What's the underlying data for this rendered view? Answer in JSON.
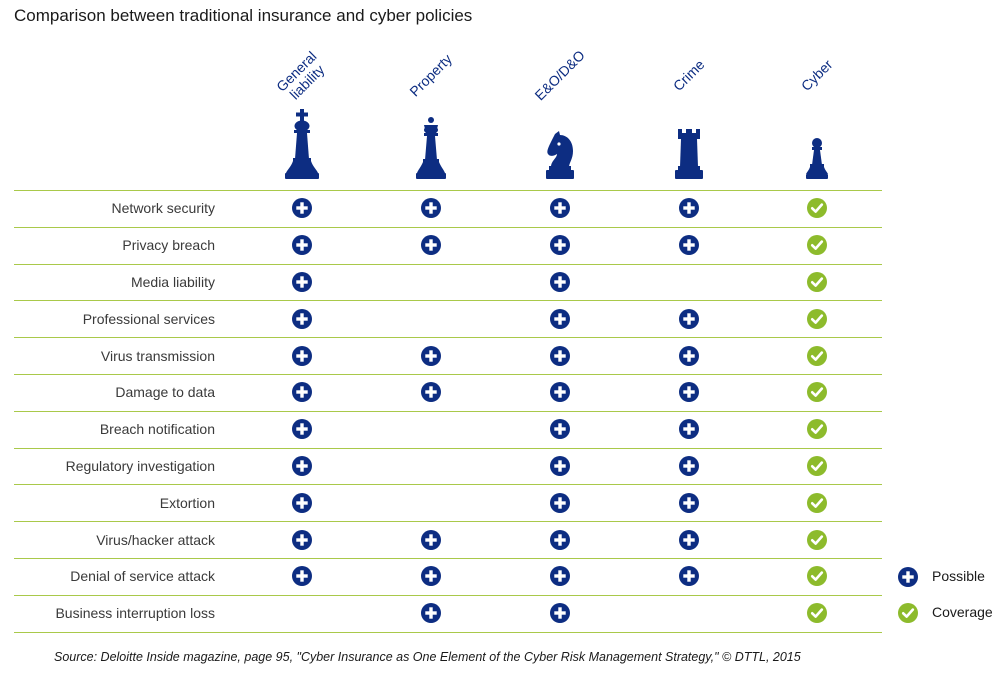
{
  "title": "Comparison between traditional insurance and cyber policies",
  "chart_data": {
    "type": "table",
    "columns": [
      {
        "label": "General liability",
        "piece": "king-icon"
      },
      {
        "label": "Property",
        "piece": "queen-icon"
      },
      {
        "label": "E&O/D&O",
        "piece": "knight-icon"
      },
      {
        "label": "Crime",
        "piece": "rook-icon"
      },
      {
        "label": "Cyber",
        "piece": "pawn-icon"
      }
    ],
    "rows": [
      {
        "label": "Network security",
        "cells": [
          "possible",
          "possible",
          "possible",
          "possible",
          "coverage"
        ]
      },
      {
        "label": "Privacy breach",
        "cells": [
          "possible",
          "possible",
          "possible",
          "possible",
          "coverage"
        ]
      },
      {
        "label": "Media liability",
        "cells": [
          "possible",
          "",
          "possible",
          "",
          "coverage"
        ]
      },
      {
        "label": "Professional services",
        "cells": [
          "possible",
          "",
          "possible",
          "possible",
          "coverage"
        ]
      },
      {
        "label": "Virus transmission",
        "cells": [
          "possible",
          "possible",
          "possible",
          "possible",
          "coverage"
        ]
      },
      {
        "label": "Damage to data",
        "cells": [
          "possible",
          "possible",
          "possible",
          "possible",
          "coverage"
        ]
      },
      {
        "label": "Breach notification",
        "cells": [
          "possible",
          "",
          "possible",
          "possible",
          "coverage"
        ]
      },
      {
        "label": "Regulatory investigation",
        "cells": [
          "possible",
          "",
          "possible",
          "possible",
          "coverage"
        ]
      },
      {
        "label": "Extortion",
        "cells": [
          "possible",
          "",
          "possible",
          "possible",
          "coverage"
        ]
      },
      {
        "label": "Virus/hacker attack",
        "cells": [
          "possible",
          "possible",
          "possible",
          "possible",
          "coverage"
        ]
      },
      {
        "label": "Denial of service attack",
        "cells": [
          "possible",
          "possible",
          "possible",
          "possible",
          "coverage"
        ]
      },
      {
        "label": "Business interruption loss",
        "cells": [
          "",
          "possible",
          "possible",
          "",
          "coverage"
        ]
      }
    ],
    "legend": [
      {
        "key": "possible",
        "label": "Possible",
        "icon": "plus-circle-icon"
      },
      {
        "key": "coverage",
        "label": "Coverage",
        "icon": "check-circle-icon"
      }
    ]
  },
  "colors": {
    "navy": "#0d2d82",
    "green": "#8dbb2c",
    "line": "#a9c94a"
  },
  "source": "Source: Deloitte Inside magazine, page  95, \"Cyber Insurance as One Element of the Cyber Risk Management Strategy,\" © DTTL, 2015"
}
